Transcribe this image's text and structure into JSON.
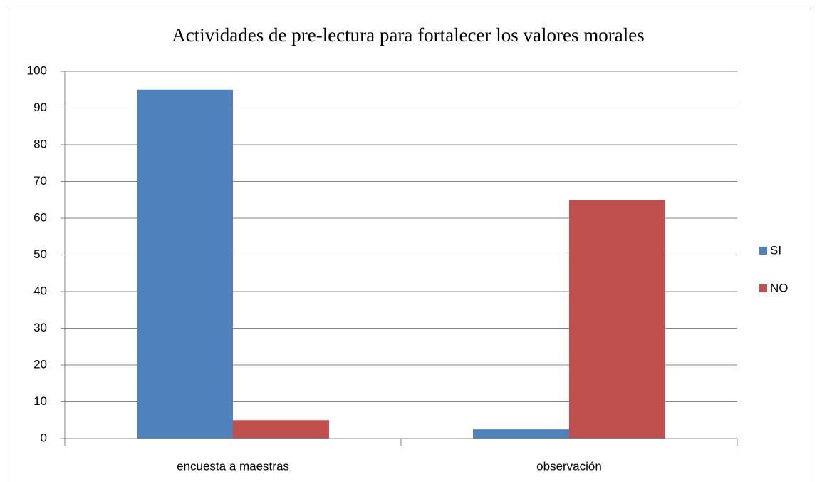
{
  "chart_data": {
    "type": "bar",
    "title": "Actividades de pre-lectura para fortalecer los valores morales",
    "categories": [
      "encuesta a maestras",
      "observación"
    ],
    "series": [
      {
        "name": "SI",
        "color": "#4f81bd",
        "values": [
          95,
          2.5
        ]
      },
      {
        "name": "NO",
        "color": "#c0504d",
        "values": [
          5,
          65
        ]
      }
    ],
    "ylim": [
      0,
      100
    ],
    "yticks": [
      0,
      10,
      20,
      30,
      40,
      50,
      60,
      70,
      80,
      90,
      100
    ],
    "grid": true,
    "legend": "right"
  }
}
